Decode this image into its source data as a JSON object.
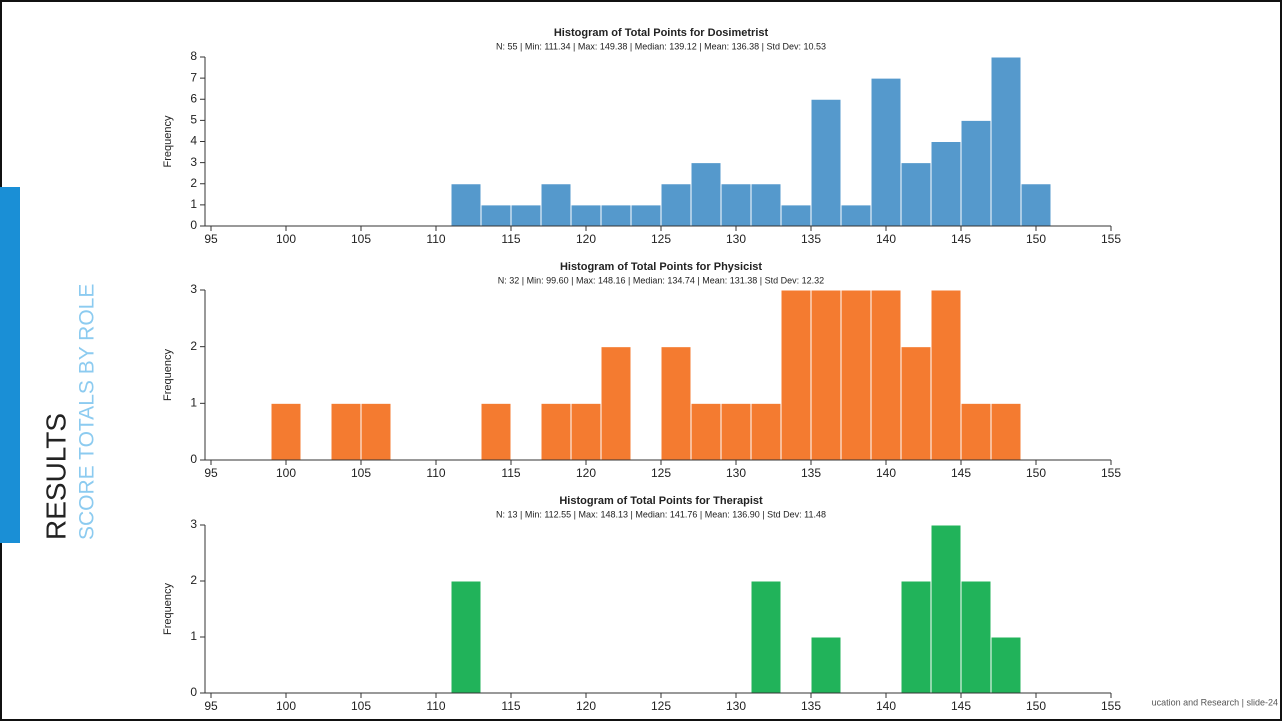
{
  "slide": {
    "heading": "RESULTS",
    "subheading": "SCORE TOTALS BY ROLE",
    "footer": "ucation and Research | slide-24"
  },
  "chart_data": [
    {
      "type": "histogram",
      "title": "Histogram of Total Points for Dosimetrist",
      "subtitle": "N: 55 | Min: 111.34 | Max: 149.38 | Median: 139.12 | Mean: 136.38 | Std Dev: 10.53",
      "y_label": "Frequency",
      "color": "#5599cc",
      "bins": [
        111,
        113,
        115,
        117,
        119,
        121,
        123,
        125,
        127,
        129,
        131,
        133,
        135,
        137,
        139,
        141,
        143,
        145,
        147,
        149,
        151
      ],
      "values": [
        2,
        1,
        1,
        2,
        1,
        1,
        1,
        2,
        3,
        2,
        2,
        1,
        6,
        1,
        7,
        3,
        4,
        5,
        8,
        2
      ],
      "xlim": [
        95,
        155
      ],
      "xticks": [
        95,
        100,
        105,
        110,
        115,
        120,
        125,
        130,
        135,
        140,
        145,
        150,
        155
      ],
      "ylim": [
        0,
        8
      ],
      "yticks": [
        0,
        1,
        2,
        3,
        4,
        5,
        6,
        7,
        8
      ]
    },
    {
      "type": "histogram",
      "title": "Histogram of Total Points for Physicist",
      "subtitle": "N: 32 | Min: 99.60 | Max: 148.16 | Median: 134.74 | Mean: 131.38 | Std Dev: 12.32",
      "y_label": "Frequency",
      "color": "#f47b30",
      "bins": [
        99,
        101,
        103,
        105,
        107,
        109,
        111,
        113,
        115,
        117,
        119,
        121,
        123,
        125,
        127,
        129,
        131,
        133,
        135,
        137,
        139,
        141,
        143,
        145,
        147,
        149
      ],
      "values": [
        1,
        0,
        1,
        1,
        0,
        0,
        0,
        1,
        0,
        1,
        1,
        2,
        0,
        2,
        1,
        1,
        1,
        3,
        3,
        3,
        3,
        2,
        3,
        1,
        1
      ],
      "xlim": [
        95,
        155
      ],
      "xticks": [
        95,
        100,
        105,
        110,
        115,
        120,
        125,
        130,
        135,
        140,
        145,
        150,
        155
      ],
      "ylim": [
        0,
        3
      ],
      "yticks": [
        0,
        1,
        2,
        3
      ]
    },
    {
      "type": "histogram",
      "title": "Histogram of Total Points for Therapist",
      "subtitle": "N: 13 | Min: 112.55 | Max: 148.13 | Median: 141.76 | Mean: 136.90 | Std Dev: 11.48",
      "y_label": "Frequency",
      "color": "#21b35a",
      "bins": [
        111,
        113,
        115,
        117,
        119,
        121,
        123,
        125,
        127,
        129,
        131,
        133,
        135,
        137,
        139,
        141,
        143,
        145,
        147,
        149
      ],
      "values": [
        2,
        0,
        0,
        0,
        0,
        0,
        0,
        0,
        0,
        0,
        2,
        0,
        1,
        0,
        0,
        2,
        3,
        2,
        1
      ],
      "xlim": [
        95,
        155
      ],
      "xticks": [
        95,
        100,
        105,
        110,
        115,
        120,
        125,
        130,
        135,
        140,
        145,
        150,
        155
      ],
      "ylim": [
        0,
        3
      ],
      "yticks": [
        0,
        1,
        2,
        3
      ]
    }
  ]
}
